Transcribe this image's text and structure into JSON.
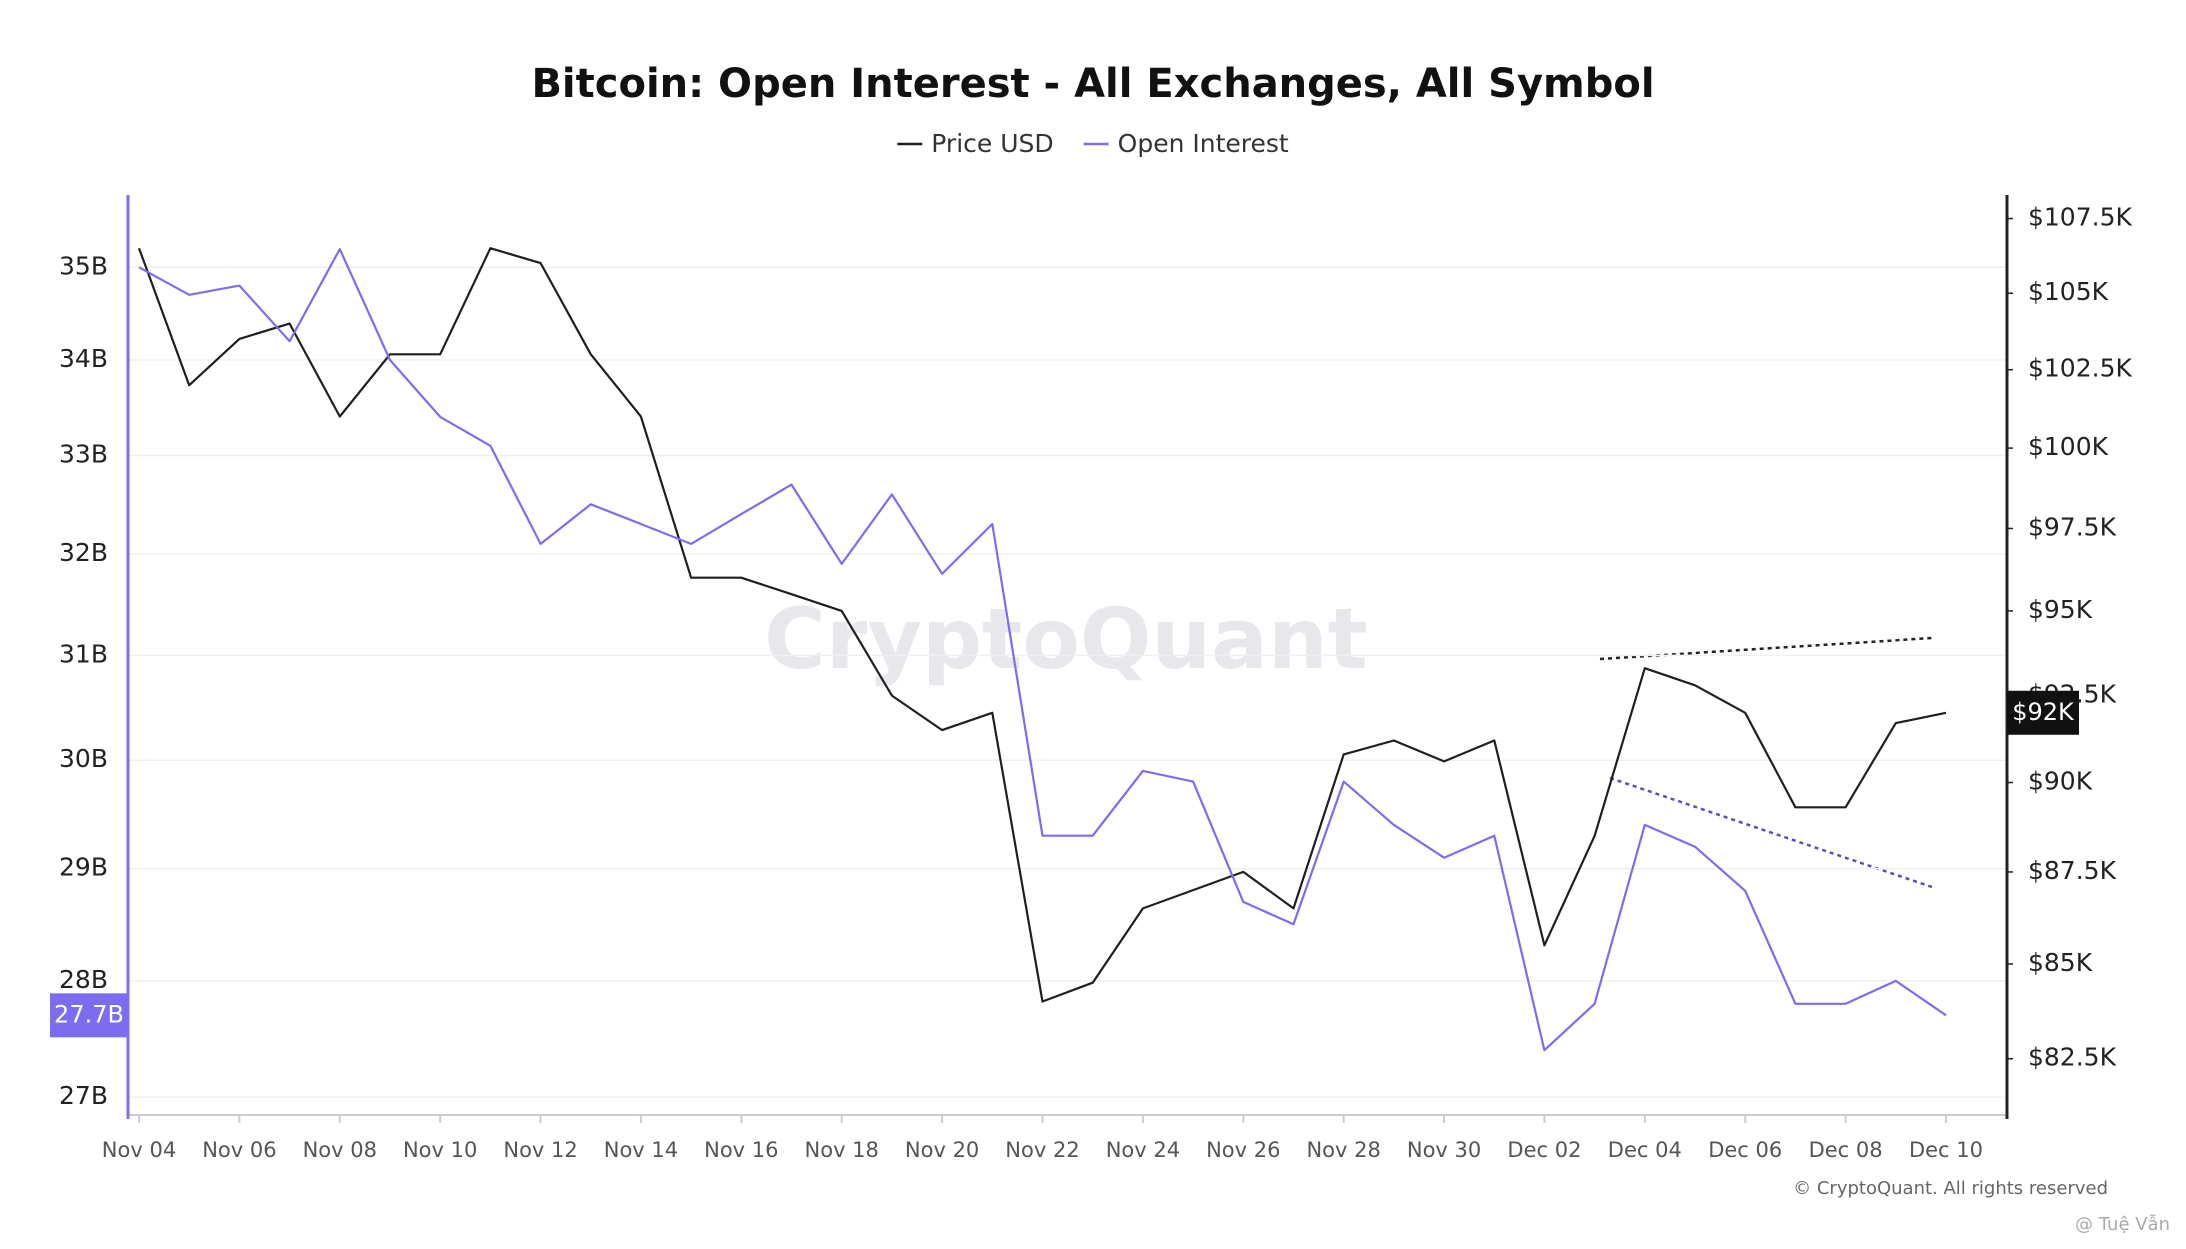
{
  "chart_data": {
    "type": "line",
    "title": "Bitcoin: Open Interest - All Exchanges, All Symbol",
    "watermark": "CryptoQuant",
    "credit": "© CryptoQuant. All rights reserved",
    "signature": "@ Tuệ Vẫn",
    "log_scale": true,
    "grid": true,
    "legend": "top",
    "categories": [
      "Nov 04",
      null,
      "Nov 06",
      null,
      "Nov 08",
      null,
      "Nov 10",
      null,
      "Nov 12",
      null,
      "Nov 14",
      null,
      "Nov 16",
      null,
      "Nov 18",
      null,
      "Nov 20",
      null,
      "Nov 22",
      null,
      "Nov 24",
      null,
      "Nov 26",
      null,
      "Nov 28",
      null,
      "Nov 30",
      null,
      "Dec 02",
      null,
      "Dec 04",
      null,
      "Dec 06",
      null,
      "Dec 08",
      null,
      "Dec 10"
    ],
    "series": [
      {
        "name": "Price USD",
        "color": "#1f1f1f",
        "axis": "y2",
        "last_label": "$92K",
        "values": [
          106.5,
          102,
          103.5,
          104,
          101,
          103,
          103,
          106.5,
          106,
          103,
          101,
          96,
          96,
          95.5,
          95,
          92.5,
          91.5,
          92,
          84,
          84.5,
          86.5,
          87,
          87.5,
          86.5,
          90.8,
          91.2,
          90.6,
          91.2,
          85.5,
          88.5,
          93.3,
          92.8,
          92,
          89.3,
          89.3,
          91.7,
          92
        ]
      },
      {
        "name": "Open Interest",
        "color": "#7d6cf0",
        "axis": "y",
        "last_label": "27.7B",
        "values": [
          35,
          34.7,
          34.8,
          34.2,
          35.2,
          34,
          33.4,
          33.1,
          32.1,
          32.5,
          32.3,
          32.1,
          32.4,
          32.7,
          31.9,
          32.6,
          31.8,
          32.3,
          29.3,
          29.3,
          29.9,
          29.8,
          28.7,
          28.5,
          29.8,
          29.4,
          29.1,
          29.3,
          27.4,
          27.8,
          29.4,
          29.2,
          28.8,
          27.8,
          27.8,
          28,
          27.7
        ]
      }
    ],
    "ylim": [
      26.85,
      35.8
    ],
    "yticks": [
      {
        "value": 27,
        "label": "27B"
      },
      {
        "value": 28,
        "label": "28B"
      },
      {
        "value": 29,
        "label": "29B"
      },
      {
        "value": 30,
        "label": "30B"
      },
      {
        "value": 31,
        "label": "31B"
      },
      {
        "value": 32,
        "label": "32B"
      },
      {
        "value": 33,
        "label": "33B"
      },
      {
        "value": 34,
        "label": "34B"
      },
      {
        "value": 35,
        "label": "35B"
      }
    ],
    "y2lim": [
      81.05,
      108.3
    ],
    "y2ticks": [
      {
        "value": 82.5,
        "label": "$82.5K"
      },
      {
        "value": 85,
        "label": "$85K"
      },
      {
        "value": 87.5,
        "label": "$87.5K"
      },
      {
        "value": 90,
        "label": "$90K"
      },
      {
        "value": 92.5,
        "label": "$92.5K"
      },
      {
        "value": 95,
        "label": "$95K"
      },
      {
        "value": 97.5,
        "label": "$97.5K"
      },
      {
        "value": 100,
        "label": "$100K"
      },
      {
        "value": 102.5,
        "label": "$102.5K"
      },
      {
        "value": 105,
        "label": "$105K"
      },
      {
        "value": 107.5,
        "label": "$107.5K"
      }
    ]
  }
}
